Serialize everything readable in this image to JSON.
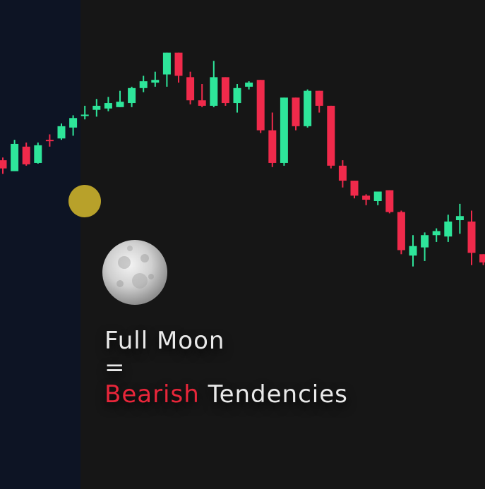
{
  "caption": {
    "line1": "Full Moon",
    "line2": "=",
    "line3_highlight": "Bearish",
    "line3_rest": "Tendencies"
  },
  "colors": {
    "background": "#161616",
    "highlight_band": "#0d1424",
    "bullish": "#2ee59a",
    "bearish": "#f02a4b",
    "event_marker": "#b8a12a",
    "moon": "#d7d7d7",
    "bearish_text": "#e8263a"
  },
  "icons": {
    "moon": "full-moon-icon",
    "marker": "moon-event-dot"
  },
  "chart_data": {
    "type": "candlestick",
    "title": "",
    "xlabel": "",
    "ylabel": "",
    "axes_visible": false,
    "grid": false,
    "highlight_region_candles": [
      0,
      6
    ],
    "event_marker_after_candle": 6,
    "candles": [
      {
        "o": 60,
        "h": 64,
        "l": 40,
        "c": 48
      },
      {
        "o": 44,
        "h": 90,
        "l": 44,
        "c": 84
      },
      {
        "o": 80,
        "h": 86,
        "l": 52,
        "c": 54
      },
      {
        "o": 56,
        "h": 86,
        "l": 55,
        "c": 82
      },
      {
        "o": 90,
        "h": 98,
        "l": 80,
        "c": 88
      },
      {
        "o": 92,
        "h": 114,
        "l": 90,
        "c": 110
      },
      {
        "o": 108,
        "h": 126,
        "l": 96,
        "c": 122
      },
      {
        "o": 126,
        "h": 140,
        "l": 120,
        "c": 127
      },
      {
        "o": 134,
        "h": 150,
        "l": 124,
        "c": 140
      },
      {
        "o": 136,
        "h": 153,
        "l": 132,
        "c": 144
      },
      {
        "o": 138,
        "h": 162,
        "l": 138,
        "c": 146
      },
      {
        "o": 144,
        "h": 168,
        "l": 138,
        "c": 166
      },
      {
        "o": 166,
        "h": 184,
        "l": 160,
        "c": 176
      },
      {
        "o": 174,
        "h": 190,
        "l": 168,
        "c": 178
      },
      {
        "o": 186,
        "h": 218,
        "l": 168,
        "c": 218
      },
      {
        "o": 218,
        "h": 218,
        "l": 174,
        "c": 184
      },
      {
        "o": 182,
        "h": 190,
        "l": 142,
        "c": 148
      },
      {
        "o": 148,
        "h": 172,
        "l": 138,
        "c": 140
      },
      {
        "o": 140,
        "h": 206,
        "l": 138,
        "c": 182
      },
      {
        "o": 182,
        "h": 182,
        "l": 140,
        "c": 144
      },
      {
        "o": 144,
        "h": 172,
        "l": 130,
        "c": 166
      },
      {
        "o": 168,
        "h": 176,
        "l": 164,
        "c": 174
      },
      {
        "o": 178,
        "h": 178,
        "l": 100,
        "c": 104
      },
      {
        "o": 104,
        "h": 130,
        "l": 50,
        "c": 56
      },
      {
        "o": 56,
        "h": 152,
        "l": 52,
        "c": 152
      },
      {
        "o": 152,
        "h": 152,
        "l": 104,
        "c": 110
      },
      {
        "o": 110,
        "h": 164,
        "l": 108,
        "c": 162
      },
      {
        "o": 162,
        "h": 162,
        "l": 130,
        "c": 140
      },
      {
        "o": 140,
        "h": 140,
        "l": 48,
        "c": 52
      },
      {
        "o": 52,
        "h": 60,
        "l": 20,
        "c": 30
      },
      {
        "o": 30,
        "h": 30,
        "l": 4,
        "c": 8
      },
      {
        "o": 8,
        "h": 10,
        "l": -6,
        "c": 2
      },
      {
        "o": 0,
        "h": 14,
        "l": -6,
        "c": 14
      },
      {
        "o": 16,
        "h": 16,
        "l": -18,
        "c": -16
      },
      {
        "o": -16,
        "h": -14,
        "l": -78,
        "c": -72
      },
      {
        "o": -80,
        "h": -50,
        "l": -96,
        "c": -66
      },
      {
        "o": -68,
        "h": -46,
        "l": -88,
        "c": -50
      },
      {
        "o": -50,
        "h": -40,
        "l": -60,
        "c": -44
      },
      {
        "o": -52,
        "h": -20,
        "l": -60,
        "c": -30
      },
      {
        "o": -28,
        "h": -4,
        "l": -48,
        "c": -22
      },
      {
        "o": -30,
        "h": -14,
        "l": -94,
        "c": -76
      },
      {
        "o": -78,
        "h": -78,
        "l": -94,
        "c": -90
      }
    ]
  }
}
